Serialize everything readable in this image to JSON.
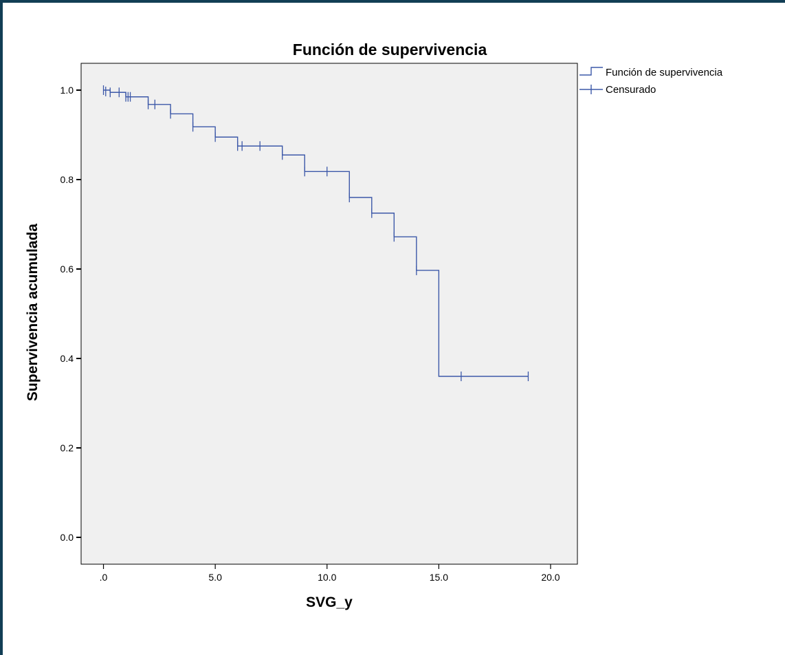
{
  "chart_data": {
    "type": "line",
    "subtype": "kaplan-meier-step",
    "title": "Función de supervivencia",
    "xlabel": "SVG_y",
    "ylabel": "Supervivencia acumulada",
    "xlim": [
      -1.0,
      21.2
    ],
    "ylim": [
      -0.06,
      1.06
    ],
    "x_ticks": [
      0,
      5,
      10,
      15,
      20
    ],
    "x_tick_labels": [
      ".0",
      "5.0",
      "10.0",
      "15.0",
      "20.0"
    ],
    "y_ticks": [
      0,
      0.2,
      0.4,
      0.6,
      0.8,
      1.0
    ],
    "y_tick_labels": [
      "0.0",
      "0.2",
      "0.4",
      "0.6",
      "0.8",
      "1.0"
    ],
    "grid": false,
    "legend_position": "right-top",
    "colors": {
      "line": "#3c58a8",
      "plot_background": "#f0f0f0",
      "frame_border": "#123e55"
    },
    "series": [
      {
        "name": "Función de supervivencia",
        "steps": [
          {
            "x": 0.0,
            "y": 1.0
          },
          {
            "x": 0.3,
            "y": 0.995
          },
          {
            "x": 1.0,
            "y": 0.985
          },
          {
            "x": 2.0,
            "y": 0.968
          },
          {
            "x": 3.0,
            "y": 0.947
          },
          {
            "x": 4.0,
            "y": 0.918
          },
          {
            "x": 5.0,
            "y": 0.895
          },
          {
            "x": 6.0,
            "y": 0.875
          },
          {
            "x": 8.0,
            "y": 0.855
          },
          {
            "x": 9.0,
            "y": 0.818
          },
          {
            "x": 11.0,
            "y": 0.76
          },
          {
            "x": 12.0,
            "y": 0.725
          },
          {
            "x": 13.0,
            "y": 0.672
          },
          {
            "x": 14.0,
            "y": 0.597
          },
          {
            "x": 15.0,
            "y": 0.36
          }
        ],
        "end_x": 19.0
      },
      {
        "name": "Censurado",
        "points": [
          {
            "x": 0.0,
            "y": 1.0
          },
          {
            "x": 0.1,
            "y": 0.997
          },
          {
            "x": 0.3,
            "y": 0.995
          },
          {
            "x": 0.7,
            "y": 0.995
          },
          {
            "x": 1.0,
            "y": 0.985
          },
          {
            "x": 1.1,
            "y": 0.985
          },
          {
            "x": 1.2,
            "y": 0.985
          },
          {
            "x": 2.0,
            "y": 0.968
          },
          {
            "x": 2.3,
            "y": 0.968
          },
          {
            "x": 3.0,
            "y": 0.947
          },
          {
            "x": 4.0,
            "y": 0.918
          },
          {
            "x": 5.0,
            "y": 0.895
          },
          {
            "x": 6.0,
            "y": 0.875
          },
          {
            "x": 6.2,
            "y": 0.875
          },
          {
            "x": 7.0,
            "y": 0.875
          },
          {
            "x": 8.0,
            "y": 0.855
          },
          {
            "x": 9.0,
            "y": 0.818
          },
          {
            "x": 10.0,
            "y": 0.818
          },
          {
            "x": 11.0,
            "y": 0.76
          },
          {
            "x": 12.0,
            "y": 0.725
          },
          {
            "x": 13.0,
            "y": 0.672
          },
          {
            "x": 14.0,
            "y": 0.597
          },
          {
            "x": 16.0,
            "y": 0.36
          },
          {
            "x": 19.0,
            "y": 0.36
          }
        ]
      }
    ]
  }
}
